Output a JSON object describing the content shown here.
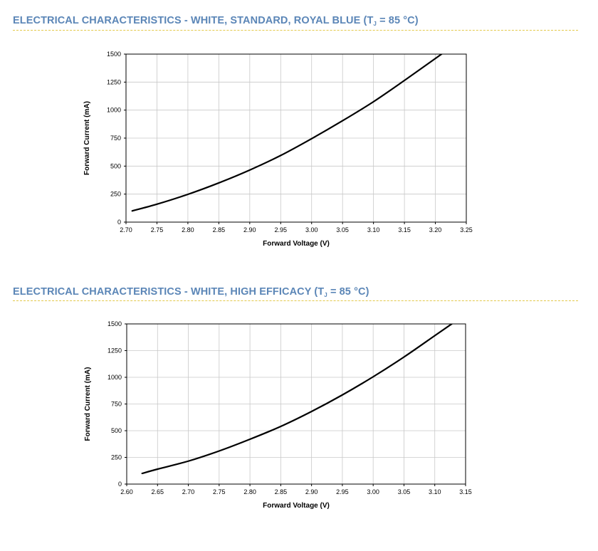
{
  "sections": [
    {
      "title_before": "ELECTRICAL CHARACTERISTICS - WHITE, STANDARD, ROYAL BLUE (T",
      "title_sub": "J",
      "title_after": " = 85 °C)"
    },
    {
      "title_before": "ELECTRICAL CHARACTERISTICS - WHITE, HIGH EFFICACY (T",
      "title_sub": "J",
      "title_after": " = 85 °C)"
    }
  ],
  "colors": {
    "title": "#5b86b7",
    "rule": "#e3c94a",
    "curve": "#000000",
    "grid": "#c8c8c8"
  },
  "chart_data": [
    {
      "type": "line",
      "xlabel": "Forward Voltage (V)",
      "ylabel": "Forward Current (mA)",
      "xlim": [
        2.7,
        3.25
      ],
      "ylim": [
        0,
        1500
      ],
      "xticks": [
        "2.70",
        "2.75",
        "2.80",
        "2.85",
        "2.90",
        "2.95",
        "3.00",
        "3.05",
        "3.10",
        "3.15",
        "3.20",
        "3.25"
      ],
      "yticks": [
        "0",
        "250",
        "500",
        "750",
        "1000",
        "1250",
        "1500"
      ],
      "grid": true,
      "series": [
        {
          "x": [
            2.71,
            2.75,
            2.8,
            2.85,
            2.9,
            2.95,
            3.0,
            3.05,
            3.1,
            3.15,
            3.21
          ],
          "y": [
            100,
            160,
            248,
            350,
            465,
            595,
            745,
            905,
            1075,
            1265,
            1500
          ]
        }
      ]
    },
    {
      "type": "line",
      "xlabel": "Forward Voltage (V)",
      "ylabel": "Forward Current (mA)",
      "xlim": [
        2.6,
        3.15
      ],
      "ylim": [
        0,
        1500
      ],
      "xticks": [
        "2.60",
        "2.65",
        "2.70",
        "2.75",
        "2.80",
        "2.85",
        "2.90",
        "2.95",
        "3.00",
        "3.05",
        "3.10",
        "3.15"
      ],
      "yticks": [
        "0",
        "250",
        "500",
        "750",
        "1000",
        "1250",
        "1500"
      ],
      "grid": true,
      "series": [
        {
          "x": [
            2.625,
            2.65,
            2.7,
            2.75,
            2.8,
            2.85,
            2.9,
            2.95,
            3.0,
            3.05,
            3.1,
            3.13
          ],
          "y": [
            100,
            140,
            215,
            310,
            420,
            540,
            680,
            835,
            1005,
            1190,
            1390,
            1510
          ]
        }
      ]
    }
  ]
}
